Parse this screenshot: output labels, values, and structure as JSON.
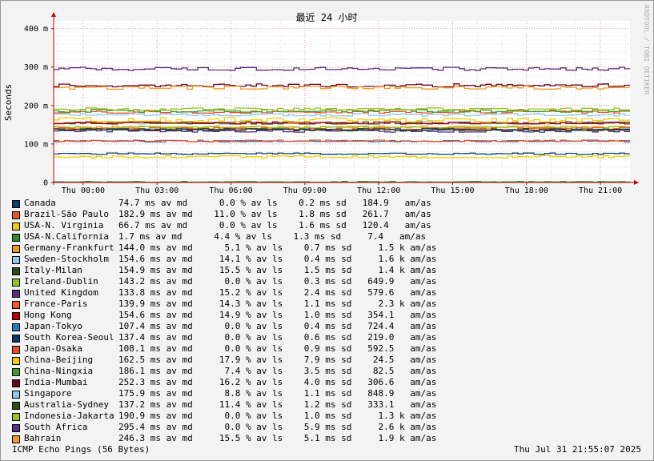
{
  "chart_data": {
    "type": "line",
    "title": "最近 24 小时",
    "ylabel": "Seconds",
    "ylim": [
      0,
      0.42
    ],
    "y_ticks": [
      {
        "value": 0,
        "label": "0"
      },
      {
        "value": 0.1,
        "label": "100 m"
      },
      {
        "value": 0.2,
        "label": "200 m"
      },
      {
        "value": 0.3,
        "label": "300 m"
      },
      {
        "value": 0.4,
        "label": "400 m"
      }
    ],
    "x_ticks": [
      "Thu 00:00",
      "Thu 03:00",
      "Thu 06:00",
      "Thu 09:00",
      "Thu 12:00",
      "Thu 15:00",
      "Thu 18:00",
      "Thu 21:00"
    ],
    "xlim_hours": [
      -1.2,
      22.2
    ],
    "grid": true,
    "series": [
      {
        "name": "Canada",
        "color": "#0a3d6b",
        "avg": 0.0747,
        "noise": 0.002,
        "stats": "74.7 ms av md      0.0 % av ls    0.2 ms sd   184.9   am/as"
      },
      {
        "name": "Brazil-São Paulo",
        "color": "#e8552a",
        "avg": 0.1829,
        "noise": 0.003,
        "stats": "182.9 ms av md    11.0 % av ls    1.8 ms sd   261.7   am/as"
      },
      {
        "name": "USA-N. Virginia",
        "color": "#f0d000",
        "avg": 0.0667,
        "noise": 0.003,
        "stats": "66.7 ms av md      0.0 % av ls    1.6 ms sd   120.4   am/as"
      },
      {
        "name": "USA-N.California",
        "color": "#2e8b2e",
        "avg": 0.0017,
        "noise": 0.001,
        "stats": "1.7 ms av md      4.4 % av ls    1.3 ms sd     7.4   am/as"
      },
      {
        "name": "Germany-Frankfurt",
        "color": "#f39a1e",
        "avg": 0.144,
        "noise": 0.003,
        "stats": "144.0 ms av md      5.1 % av ls    0.7 ms sd     1.5 k am/as"
      },
      {
        "name": "Sweden-Stockholm",
        "color": "#8ec9ee",
        "avg": 0.1546,
        "noise": 0.003,
        "stats": "154.6 ms av md     14.1 % av ls    0.4 ms sd     1.6 k am/as"
      },
      {
        "name": "Italy-Milan",
        "color": "#2f4a1a",
        "avg": 0.1549,
        "noise": 0.003,
        "stats": "154.9 ms av md     15.5 % av ls    1.5 ms sd     1.4 k am/as"
      },
      {
        "name": "Ireland-Dublin",
        "color": "#9ac31e",
        "avg": 0.1432,
        "noise": 0.003,
        "stats": "143.2 ms av md      0.0 % av ls    0.3 ms sd   649.9   am/as"
      },
      {
        "name": "United Kingdom",
        "color": "#5c2a7e",
        "avg": 0.1338,
        "noise": 0.003,
        "stats": "133.8 ms av md     15.2 % av ls    2.4 ms sd   579.6   am/as"
      },
      {
        "name": "France-Paris",
        "color": "#f05a28",
        "avg": 0.1399,
        "noise": 0.003,
        "stats": "139.9 ms av md     14.3 % av ls    1.1 ms sd     2.3 k am/as"
      },
      {
        "name": "Hong Kong",
        "color": "#c00000",
        "avg": 0.1546,
        "noise": 0.003,
        "stats": "154.6 ms av md     14.9 % av ls    1.0 ms sd   354.1   am/as"
      },
      {
        "name": "Japan-Tokyo",
        "color": "#1f7fbf",
        "avg": 0.1074,
        "noise": 0.002,
        "stats": "107.4 ms av md      0.0 % av ls    0.4 ms sd   724.4   am/as"
      },
      {
        "name": "South Korea-Seoul",
        "color": "#0a3d6b",
        "avg": 0.1374,
        "noise": 0.002,
        "stats": "137.4 ms av md      0.0 % av ls    0.6 ms sd   219.0   am/as"
      },
      {
        "name": "Japan-Osaka",
        "color": "#f04a2a",
        "avg": 0.1081,
        "noise": 0.002,
        "stats": "108.1 ms av md      0.0 % av ls    0.9 ms sd   592.5   am/as"
      },
      {
        "name": "China-Beijing",
        "color": "#f5d000",
        "avg": 0.1625,
        "noise": 0.006,
        "stats": "162.5 ms av md     17.9 % av ls    7.9 ms sd    24.5   am/as"
      },
      {
        "name": "China-Ningxia",
        "color": "#3f9a2a",
        "avg": 0.1861,
        "noise": 0.004,
        "stats": "186.1 ms av md      7.4 % av ls    3.5 ms sd    82.5   am/as"
      },
      {
        "name": "India-Mumbai",
        "color": "#6a0020",
        "avg": 0.2523,
        "noise": 0.004,
        "stats": "252.3 ms av md     16.2 % av ls    4.0 ms sd   306.6   am/as"
      },
      {
        "name": "Singapore",
        "color": "#8ec9ee",
        "avg": 0.1759,
        "noise": 0.003,
        "stats": "175.9 ms av md      8.8 % av ls    1.1 ms sd   848.9   am/as"
      },
      {
        "name": "Australia-Sydney",
        "color": "#2f4a1a",
        "avg": 0.1372,
        "noise": 0.003,
        "stats": "137.2 ms av md     11.4 % av ls    1.2 ms sd   333.1   am/as"
      },
      {
        "name": "Indonesia-Jakarta",
        "color": "#9ac31e",
        "avg": 0.1909,
        "noise": 0.003,
        "stats": "190.9 ms av md      0.0 % av ls    1.0 ms sd     1.3 k am/as"
      },
      {
        "name": "South Africa",
        "color": "#5c2a7e",
        "avg": 0.2954,
        "noise": 0.004,
        "stats": "295.4 ms av md      0.0 % av ls    5.9 ms sd     2.6 k am/as"
      },
      {
        "name": "Bahrain",
        "color": "#f39a1e",
        "avg": 0.2463,
        "noise": 0.004,
        "stats": "246.3 ms av md     15.5 % av ls    5.1 ms sd     1.9 k am/as"
      }
    ]
  },
  "footer": {
    "probe": "ICMP Echo Pings (56 Bytes)",
    "timestamp": "Thu Jul 31 21:55:07 2025"
  },
  "watermark": "RRDTOOL / TOBI OETIKER"
}
